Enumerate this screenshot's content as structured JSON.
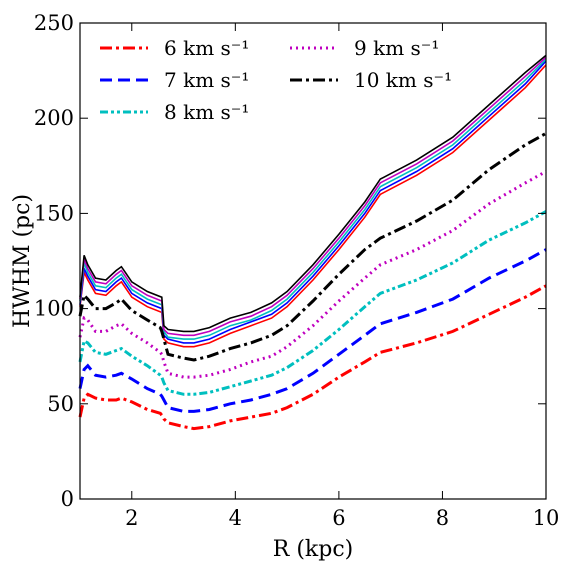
{
  "chart_data": {
    "type": "line",
    "title": "",
    "xlabel": "R (kpc)",
    "ylabel": "HWHM (pc)",
    "xlim": [
      1,
      10
    ],
    "ylim": [
      0,
      250
    ],
    "xticks": [
      2,
      4,
      6,
      8,
      10
    ],
    "yticks": [
      0,
      50,
      100,
      150,
      200,
      250
    ],
    "grid": false,
    "legend_position": "top-left",
    "series": [
      {
        "name": "6 km s⁻¹",
        "style": "dashdot",
        "color": "#ff0000",
        "x": [
          1.0,
          1.08,
          1.15,
          1.3,
          1.5,
          1.7,
          1.8,
          2.0,
          2.3,
          2.55,
          2.58,
          2.62,
          2.7,
          3.0,
          3.2,
          3.5,
          3.9,
          4.3,
          4.7,
          5.0,
          5.5,
          6.0,
          6.5,
          6.8,
          7.5,
          8.2,
          8.9,
          9.6,
          10.0
        ],
        "y": [
          43,
          53,
          55,
          53,
          52,
          52,
          53,
          51,
          47,
          45,
          44,
          42,
          40,
          38,
          37,
          38,
          41,
          43,
          45,
          48,
          55,
          64,
          72,
          77,
          82,
          88,
          97,
          106,
          112
        ]
      },
      {
        "name": "7 km s⁻¹",
        "style": "dashed",
        "color": "#0000ff",
        "x": [
          1.0,
          1.08,
          1.15,
          1.3,
          1.5,
          1.7,
          1.8,
          2.0,
          2.3,
          2.55,
          2.58,
          2.62,
          2.7,
          3.0,
          3.2,
          3.5,
          3.9,
          4.3,
          4.7,
          5.0,
          5.5,
          6.0,
          6.5,
          6.8,
          7.5,
          8.2,
          8.9,
          9.6,
          10.0
        ],
        "y": [
          58,
          68,
          70,
          65,
          64,
          65,
          66,
          63,
          58,
          55,
          54,
          52,
          48,
          46,
          46,
          47,
          50,
          52,
          55,
          58,
          66,
          76,
          86,
          92,
          98,
          105,
          116,
          125,
          131
        ]
      },
      {
        "name": "8 km s⁻¹",
        "style": "dashdotdot",
        "color": "#00bfbf",
        "x": [
          1.0,
          1.08,
          1.15,
          1.3,
          1.5,
          1.7,
          1.8,
          2.0,
          2.3,
          2.55,
          2.58,
          2.62,
          2.7,
          3.0,
          3.2,
          3.5,
          3.9,
          4.3,
          4.7,
          5.0,
          5.5,
          6.0,
          6.5,
          6.8,
          7.5,
          8.2,
          8.9,
          9.6,
          10.0
        ],
        "y": [
          72,
          83,
          82,
          77,
          76,
          78,
          79,
          75,
          70,
          65,
          64,
          61,
          57,
          55,
          55,
          56,
          59,
          62,
          65,
          69,
          78,
          89,
          101,
          108,
          115,
          124,
          136,
          145,
          151
        ]
      },
      {
        "name": "9 km s⁻¹",
        "style": "dotted",
        "color": "#bf00bf",
        "x": [
          1.0,
          1.08,
          1.15,
          1.3,
          1.5,
          1.7,
          1.8,
          2.0,
          2.3,
          2.55,
          2.58,
          2.62,
          2.7,
          3.0,
          3.2,
          3.5,
          3.9,
          4.3,
          4.7,
          5.0,
          5.5,
          6.0,
          6.5,
          6.8,
          7.5,
          8.2,
          8.9,
          9.6,
          10.0
        ],
        "y": [
          85,
          95,
          94,
          88,
          88,
          91,
          92,
          87,
          82,
          77,
          76,
          72,
          66,
          64,
          64,
          65,
          68,
          72,
          75,
          80,
          91,
          104,
          116,
          123,
          131,
          141,
          155,
          166,
          172
        ]
      },
      {
        "name": "10 km s⁻¹",
        "style": "dashdot",
        "color": "#000000",
        "x": [
          1.0,
          1.08,
          1.15,
          1.3,
          1.5,
          1.7,
          1.8,
          2.0,
          2.3,
          2.55,
          2.58,
          2.62,
          2.7,
          3.0,
          3.2,
          3.5,
          3.9,
          4.3,
          4.7,
          5.0,
          5.5,
          6.0,
          6.5,
          6.8,
          7.5,
          8.2,
          8.9,
          9.6,
          10.0
        ],
        "y": [
          96,
          107,
          105,
          100,
          100,
          103,
          105,
          99,
          94,
          90,
          88,
          84,
          76,
          74,
          73,
          75,
          79,
          82,
          86,
          91,
          104,
          118,
          131,
          137,
          146,
          157,
          173,
          186,
          192
        ]
      }
    ],
    "extra_lines": [
      {
        "color": "#ff0000",
        "x": [
          1.0,
          1.08,
          1.15,
          1.3,
          1.5,
          1.7,
          1.8,
          2.0,
          2.3,
          2.58,
          2.62,
          2.7,
          3.0,
          3.2,
          3.5,
          3.9,
          4.3,
          4.7,
          5.0,
          5.5,
          6.0,
          6.5,
          6.8,
          7.5,
          8.2,
          8.9,
          9.6,
          10.0
        ],
        "y": [
          101,
          119,
          115,
          108,
          107,
          112,
          114,
          106,
          101,
          98,
          84,
          82,
          80,
          80,
          82,
          87,
          91,
          95,
          101,
          115,
          131,
          148,
          160,
          170,
          182,
          199,
          216,
          228
        ]
      },
      {
        "color": "#0000ff",
        "x": [
          1.0,
          1.08,
          1.15,
          1.3,
          1.5,
          1.7,
          1.8,
          2.0,
          2.3,
          2.58,
          2.62,
          2.7,
          3.0,
          3.2,
          3.5,
          3.9,
          4.3,
          4.7,
          5.0,
          5.5,
          6.0,
          6.5,
          6.8,
          7.5,
          8.2,
          8.9,
          9.6,
          10.0
        ],
        "y": [
          102,
          121,
          117,
          110,
          109,
          114,
          116,
          108,
          103,
          100,
          86,
          84,
          82,
          82,
          84,
          89,
          93,
          97,
          103,
          117,
          133,
          150,
          162,
          172,
          184,
          201,
          218,
          230
        ]
      },
      {
        "color": "#00bfbf",
        "x": [
          1.0,
          1.08,
          1.15,
          1.3,
          1.5,
          1.7,
          1.8,
          2.0,
          2.3,
          2.58,
          2.62,
          2.7,
          3.0,
          3.2,
          3.5,
          3.9,
          4.3,
          4.7,
          5.0,
          5.5,
          6.0,
          6.5,
          6.8,
          7.5,
          8.2,
          8.9,
          9.6,
          10.0
        ],
        "y": [
          104,
          124,
          119,
          112,
          111,
          116,
          118,
          110,
          105,
          102,
          88,
          85,
          84,
          84,
          86,
          91,
          94,
          99,
          105,
          119,
          135,
          152,
          164,
          174,
          186,
          203,
          220,
          231
        ]
      },
      {
        "color": "#bf00bf",
        "x": [
          1.0,
          1.08,
          1.15,
          1.3,
          1.5,
          1.7,
          1.8,
          2.0,
          2.3,
          2.58,
          2.62,
          2.7,
          3.0,
          3.2,
          3.5,
          3.9,
          4.3,
          4.7,
          5.0,
          5.5,
          6.0,
          6.5,
          6.8,
          7.5,
          8.2,
          8.9,
          9.6,
          10.0
        ],
        "y": [
          105,
          126,
          121,
          114,
          113,
          118,
          120,
          112,
          107,
          104,
          89,
          87,
          86,
          86,
          88,
          93,
          96,
          101,
          107,
          121,
          137,
          154,
          166,
          176,
          188,
          205,
          222,
          232
        ]
      },
      {
        "color": "#000000",
        "x": [
          1.0,
          1.08,
          1.15,
          1.3,
          1.5,
          1.7,
          1.8,
          2.0,
          2.3,
          2.58,
          2.62,
          2.7,
          3.0,
          3.2,
          3.5,
          3.9,
          4.3,
          4.7,
          5.0,
          5.5,
          6.0,
          6.5,
          6.8,
          7.5,
          8.2,
          8.9,
          9.6,
          10.0
        ],
        "y": [
          106,
          128,
          123,
          116,
          115,
          120,
          122,
          114,
          109,
          106,
          91,
          89,
          88,
          88,
          90,
          95,
          98,
          103,
          109,
          123,
          139,
          156,
          168,
          178,
          190,
          207,
          224,
          233
        ]
      }
    ]
  }
}
